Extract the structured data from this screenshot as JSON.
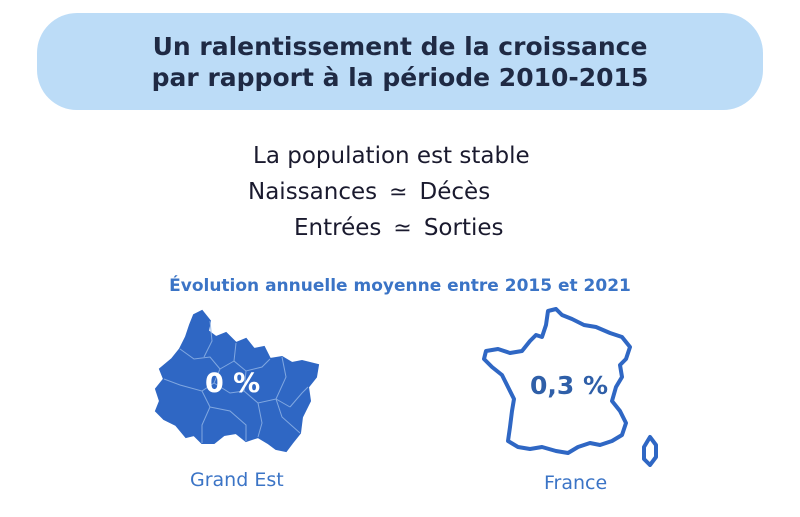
{
  "header": {
    "title_line1": "Un ralentissement de la croissance",
    "title_line2": "par rapport à la période 2010-2015"
  },
  "facts": {
    "stable": "La population est stable",
    "births": "Naissances",
    "deaths": "Décès",
    "entries": "Entrées",
    "exits": "Sorties",
    "approx_symbol": "≃"
  },
  "subtitle": "Évolution annuelle moyenne entre 2015 et 2021",
  "regions": [
    {
      "name": "Grand Est",
      "value": "0 %"
    },
    {
      "name": "France",
      "value": "0,3 %"
    }
  ],
  "colors": {
    "banner": "#bcdcf7",
    "accent": "#3b74c6",
    "map_fill": "#2f67c4"
  }
}
